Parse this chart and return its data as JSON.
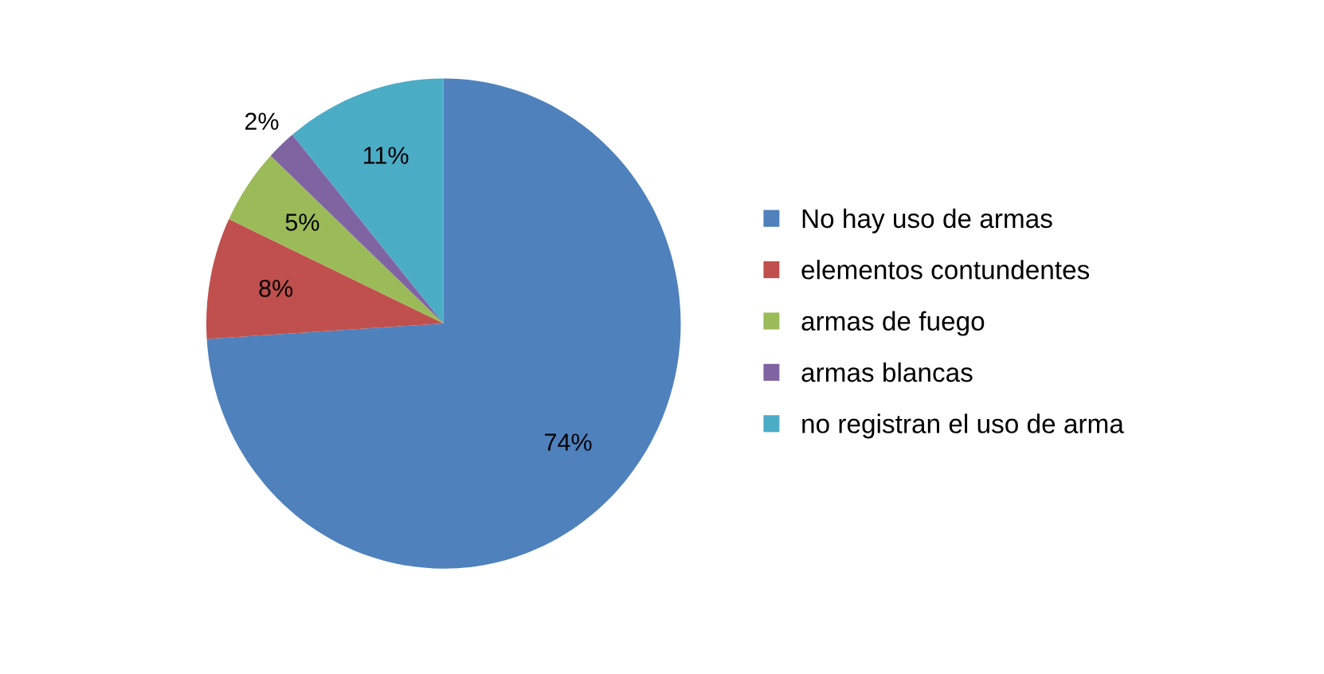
{
  "chart_data": {
    "type": "pie",
    "categories": [
      "No hay uso de armas",
      "elementos contundentes",
      "armas de fuego",
      "armas blancas",
      "no registran el uso de arma"
    ],
    "values": [
      74,
      8,
      5,
      2,
      11
    ],
    "colors": [
      "#4f81bd",
      "#c0504d",
      "#9bbb59",
      "#8064a2",
      "#4bacc6"
    ],
    "value_labels": [
      "74%",
      "8%",
      "5%",
      "2%",
      "11%"
    ],
    "legend": "right"
  }
}
